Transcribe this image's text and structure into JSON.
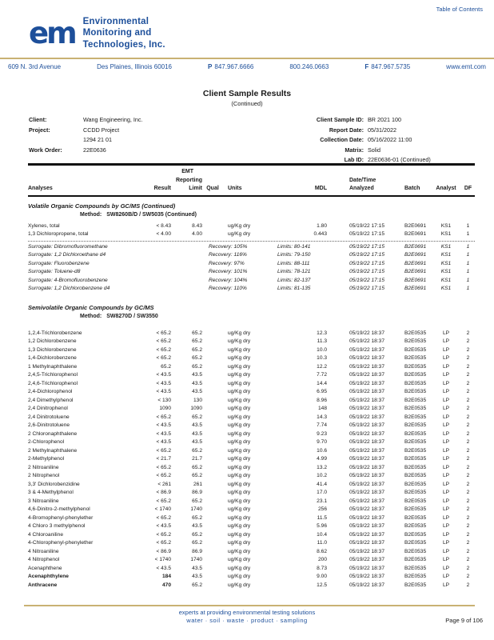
{
  "colors": {
    "brand_blue": "#1d4f9a",
    "tan_rule": "#c9b173"
  },
  "header": {
    "toc_link": "Table of Contents",
    "logo": {
      "monogram": "em",
      "line1": "Environmental",
      "line2": "Monitoring and",
      "line3": "Technologies, Inc."
    },
    "contact": {
      "street": "609 N. 3rd Avenue",
      "city": "Des Plaines, Illinois 60016",
      "phone_label": "P",
      "phone": "847.967.6666",
      "tollfree": "800.246.0663",
      "fax_label": "F",
      "fax": "847.967.5735",
      "website": "www.emt.com"
    }
  },
  "title": {
    "main": "Client Sample Results",
    "sub": "(Continued)"
  },
  "info": {
    "left": [
      {
        "label": "Client:",
        "value": "Wang Engineering, Inc."
      },
      {
        "label": "Project:",
        "value": "CCDD Project"
      },
      {
        "label": "",
        "value": "1294 21 01"
      },
      {
        "label": "Work Order:",
        "value": "22E0636"
      }
    ],
    "right": [
      {
        "label": "Client Sample ID:",
        "value": "BR 2021 100"
      },
      {
        "label": "Report Date:",
        "value": "05/31/2022"
      },
      {
        "label": "Collection Date:",
        "value": "05/16/2022 11:00"
      },
      {
        "label": "Matrix:",
        "value": "Solid"
      },
      {
        "label": "Lab ID:",
        "value": "22E0636-01 (Continued)"
      }
    ]
  },
  "table": {
    "columns": {
      "analyses": "Analyses",
      "result": "Result",
      "limit_l1": "EMT",
      "limit_l2": "Reporting",
      "limit_l3": "Limit",
      "qual": "Qual",
      "units": "Units",
      "mdl": "MDL",
      "analyzed_l1": "Date/Time",
      "analyzed_l2": "Analyzed",
      "batch": "Batch",
      "analyst": "Analyst",
      "df": "DF"
    },
    "sections": [
      {
        "title": "Volatile Organic Compounds by GC/MS (Continued)",
        "method_label": "Method:",
        "method": "SW8260B/D / SW5035 (Continued)",
        "defaults": {
          "units": "ug/Kg dry",
          "analyzed": "05/19/22 17:15",
          "batch": "B2E0691",
          "analyst": "KS1",
          "df": "1",
          "qual": ""
        },
        "rows": [
          {
            "analyte": "Xylenes, total",
            "result": "< 8.43",
            "limit": "8.43",
            "mdl": "1.80",
            "bold": false
          },
          {
            "analyte": "1,3 Dichloropropene, total",
            "result": "< 4.00",
            "limit": "4.00",
            "mdl": "0.443",
            "bold": false
          }
        ],
        "surrogates": [
          {
            "name": "Surrogate: Dibromofluoromethane",
            "recovery": "Recovery: 105%",
            "limits": "Limits: 80-141"
          },
          {
            "name": "Surrogate: 1,2 Dichloroethane d4",
            "recovery": "Recovery: 116%",
            "limits": "Limits: 79-150"
          },
          {
            "name": "Surrogate: Fluorobenzene",
            "recovery": "Recovery: 97%",
            "limits": "Limits: 88-111"
          },
          {
            "name": "Surrogate: Toluene-d8",
            "recovery": "Recovery: 101%",
            "limits": "Limits: 78-121"
          },
          {
            "name": "Surrogate: 4-Bromofluorobenzene",
            "recovery": "Recovery: 104%",
            "limits": "Limits: 82-137"
          },
          {
            "name": "Surrogate: 1,2 Dichlorobenzene d4",
            "recovery": "Recovery: 110%",
            "limits": "Limits: 81-135"
          }
        ]
      },
      {
        "title": "Semivolatile Organic Compounds by GC/MS",
        "method_label": "Method:",
        "method": "SW8270D / SW3550",
        "defaults": {
          "units": "ug/Kg dry",
          "analyzed": "05/19/22 18:37",
          "batch": "B2E0535",
          "analyst": "LP",
          "df": "2",
          "qual": ""
        },
        "rows": [
          {
            "analyte": "1,2,4-Trichlorobenzene",
            "result": "< 65.2",
            "limit": "65.2",
            "mdl": "12.3",
            "bold": false
          },
          {
            "analyte": "1,2 Dichlorobenzene",
            "result": "< 65.2",
            "limit": "65.2",
            "mdl": "11.3",
            "bold": false
          },
          {
            "analyte": "1,3 Dichlorobenzene",
            "result": "< 65.2",
            "limit": "65.2",
            "mdl": "10.0",
            "bold": false
          },
          {
            "analyte": "1,4-Dichlorobenzene",
            "result": "< 65.2",
            "limit": "65.2",
            "mdl": "10.3",
            "bold": false
          },
          {
            "analyte": "1 Methylnaphthalene",
            "result": "65.2",
            "limit": "65.2",
            "mdl": "12.2",
            "bold": false
          },
          {
            "analyte": "2,4,5-Trichlorophenol",
            "result": "< 43.5",
            "limit": "43.5",
            "mdl": "7.72",
            "bold": false
          },
          {
            "analyte": "2,4,6-Trichlorophenol",
            "result": "< 43.5",
            "limit": "43.5",
            "mdl": "14.4",
            "bold": false
          },
          {
            "analyte": "2,4-Dichlorophenol",
            "result": "< 43.5",
            "limit": "43.5",
            "mdl": "6.95",
            "bold": false
          },
          {
            "analyte": "2,4 Dimethylphenol",
            "result": "< 130",
            "limit": "130",
            "mdl": "8.96",
            "bold": false
          },
          {
            "analyte": "2,4 Dinitrophenol",
            "result": "1090",
            "limit": "1090",
            "mdl": "148",
            "bold": false
          },
          {
            "analyte": "2,4 Dinitrotoluene",
            "result": "< 65.2",
            "limit": "65.2",
            "mdl": "14.3",
            "bold": false
          },
          {
            "analyte": "2,6-Dinitrotoluene",
            "result": "< 43.5",
            "limit": "43.5",
            "mdl": "7.74",
            "bold": false
          },
          {
            "analyte": "2 Chloronaphthalene",
            "result": "< 43.5",
            "limit": "43.5",
            "mdl": "9.23",
            "bold": false
          },
          {
            "analyte": "2-Chlorophenol",
            "result": "< 43.5",
            "limit": "43.5",
            "mdl": "9.70",
            "bold": false
          },
          {
            "analyte": "2 Methylnaphthalene",
            "result": "< 65.2",
            "limit": "65.2",
            "mdl": "10.6",
            "bold": false
          },
          {
            "analyte": "2-Methylphenol",
            "result": "< 21.7",
            "limit": "21.7",
            "mdl": "4.99",
            "bold": false
          },
          {
            "analyte": "2 Nitroaniline",
            "result": "< 65.2",
            "limit": "65.2",
            "mdl": "13.2",
            "bold": false
          },
          {
            "analyte": "2 Nitrophenol",
            "result": "< 65.2",
            "limit": "65.2",
            "mdl": "10.2",
            "bold": false
          },
          {
            "analyte": "3,3' Dichlorobenzidine",
            "result": "< 261",
            "limit": "261",
            "mdl": "41.4",
            "bold": false
          },
          {
            "analyte": "3 & 4-Methylphenol",
            "result": "< 86.9",
            "limit": "86.9",
            "mdl": "17.0",
            "bold": false
          },
          {
            "analyte": "3 Nitroaniline",
            "result": "< 65.2",
            "limit": "65.2",
            "mdl": "23.1",
            "bold": false
          },
          {
            "analyte": "4,6-Dinitro-2-methylphenol",
            "result": "< 1740",
            "limit": "1740",
            "mdl": "256",
            "bold": false
          },
          {
            "analyte": "4-Bromophenyl-phenylether",
            "result": "< 65.2",
            "limit": "65.2",
            "mdl": "11.5",
            "bold": false
          },
          {
            "analyte": "4 Chloro 3 methylphenol",
            "result": "< 43.5",
            "limit": "43.5",
            "mdl": "5.96",
            "bold": false
          },
          {
            "analyte": "4 Chloroaniline",
            "result": "< 65.2",
            "limit": "65.2",
            "mdl": "10.4",
            "bold": false
          },
          {
            "analyte": "4-Chlorophenyl-phenylether",
            "result": "< 65.2",
            "limit": "65.2",
            "mdl": "11.0",
            "bold": false
          },
          {
            "analyte": "4 Nitroaniline",
            "result": "< 86.9",
            "limit": "86.9",
            "mdl": "8.62",
            "bold": false
          },
          {
            "analyte": "4 Nitrophenol",
            "result": "< 1740",
            "limit": "1740",
            "mdl": "200",
            "bold": false
          },
          {
            "analyte": "Acenaphthene",
            "result": "< 43.5",
            "limit": "43.5",
            "mdl": "8.73",
            "bold": false
          },
          {
            "analyte": "Acenaphthylene",
            "result": "184",
            "limit": "43.5",
            "mdl": "9.00",
            "bold": true
          },
          {
            "analyte": "Anthracene",
            "result": "470",
            "limit": "65.2",
            "mdl": "12.5",
            "bold": true
          }
        ],
        "surrogates": []
      }
    ]
  },
  "footer": {
    "tagline": "experts at providing environmental testing solutions",
    "categories": "water  ·  soil  ·  waste  ·  product  ·  sampling",
    "page_number": "Page 9 of 106"
  }
}
